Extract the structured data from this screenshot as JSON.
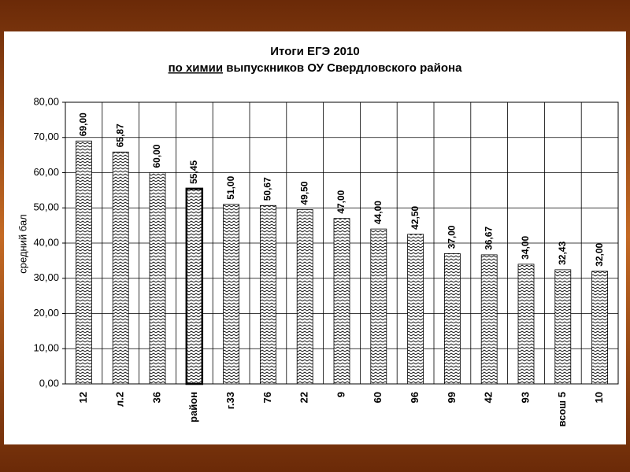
{
  "chart_data": {
    "type": "bar",
    "title": "Итоги ЕГЭ 2010",
    "subtitle": [
      "по химии",
      "выпускников ОУ Свердловского района"
    ],
    "y_label": "средний бал",
    "categories": [
      "12",
      "л.2",
      "36",
      "район",
      "г.33",
      "76",
      "22",
      "9",
      "60",
      "96",
      "99",
      "42",
      "93",
      "всош 5",
      "10"
    ],
    "values": [
      69,
      65.87,
      60,
      55.45,
      51,
      50.67,
      49.5,
      47,
      44,
      42.5,
      37,
      36.67,
      34,
      32.43,
      32
    ],
    "value_labels": [
      "69,00",
      "65,87",
      "60,00",
      "55,45",
      "51,00",
      "50,67",
      "49,50",
      "47,00",
      "44,00",
      "42,50",
      "37,00",
      "36,67",
      "34,00",
      "32,43",
      "32,00"
    ],
    "highlight_index": 3,
    "color": "#000000",
    "ylim": [
      0,
      80
    ],
    "yticks": [
      {
        "value": 0,
        "label": "0,00"
      },
      {
        "value": 10,
        "label": "10,00"
      },
      {
        "value": 20,
        "label": "20,00"
      },
      {
        "value": 30,
        "label": "30,00"
      },
      {
        "value": 40,
        "label": "40,00"
      },
      {
        "value": 50,
        "label": "50,00"
      },
      {
        "value": 60,
        "label": "60,00"
      },
      {
        "value": 70,
        "label": "70,00"
      },
      {
        "value": 80,
        "label": "80,00"
      }
    ],
    "grid": true
  }
}
